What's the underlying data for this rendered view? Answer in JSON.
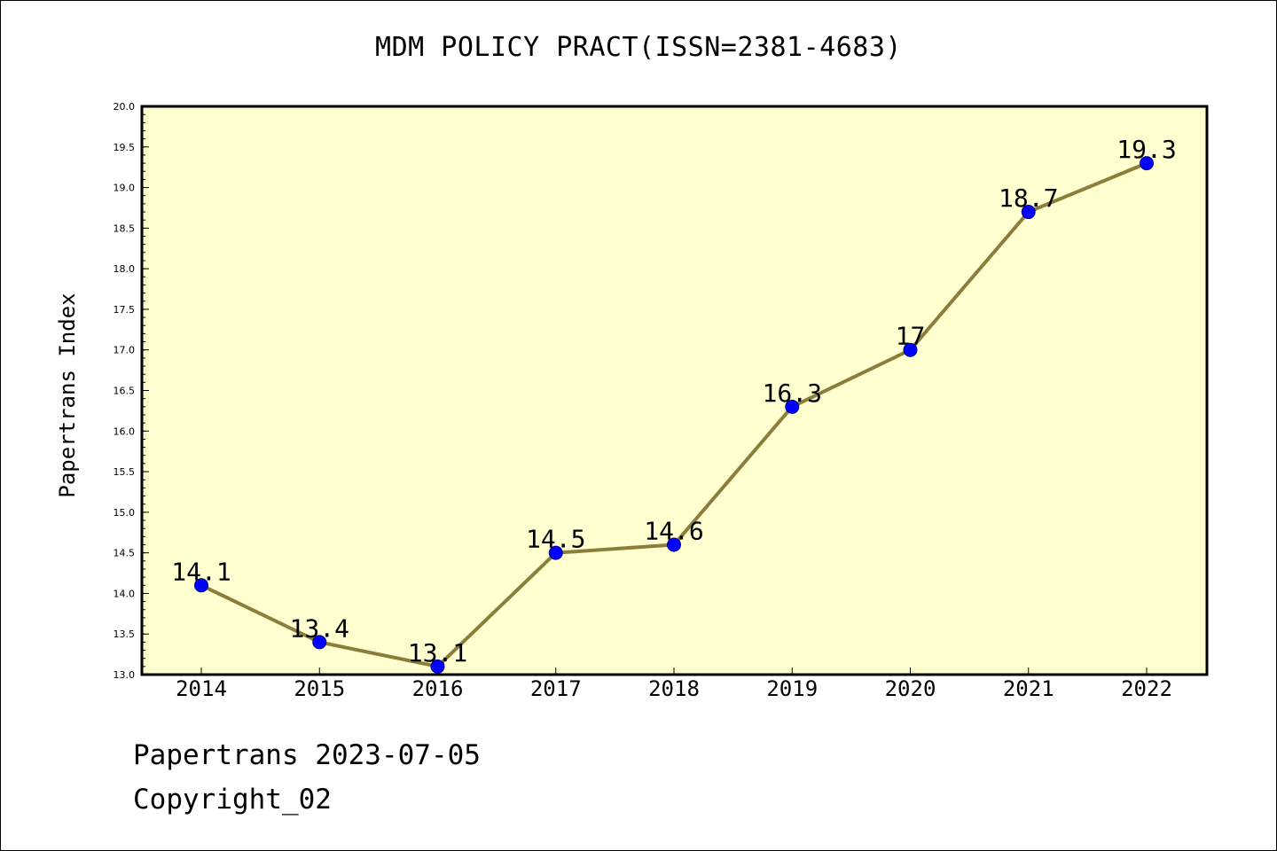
{
  "chart_data": {
    "type": "line",
    "title": "MDM POLICY PRACT(ISSN=2381-4683)",
    "xlabel": "",
    "ylabel": "Papertrans Index",
    "categories": [
      "2014",
      "2015",
      "2016",
      "2017",
      "2018",
      "2019",
      "2020",
      "2021",
      "2022"
    ],
    "series": [
      {
        "values": [
          14.1,
          13.4,
          13.1,
          14.5,
          14.6,
          16.3,
          17.0,
          18.7,
          19.3
        ],
        "labels": [
          "14.1",
          "13.4",
          "13.1",
          "14.5",
          "14.6",
          "16.3",
          "17",
          "18.7",
          "19.3"
        ]
      }
    ],
    "ylim": [
      13.0,
      20.0
    ],
    "yticks": [
      "13.0",
      "13.5",
      "14.0",
      "14.5",
      "15.0",
      "15.5",
      "16.0",
      "16.5",
      "17.0",
      "17.5",
      "18.0",
      "18.5",
      "19.0",
      "19.5",
      "20.0"
    ],
    "grid": false,
    "colors": {
      "plot_background": "#ffffd0",
      "line": "#8b7d3a",
      "marker_fill": "#0000ff",
      "marker_edge": "#000080"
    }
  },
  "footer": {
    "date_line": "Papertrans 2023-07-05",
    "copyright": "Copyright_02"
  }
}
